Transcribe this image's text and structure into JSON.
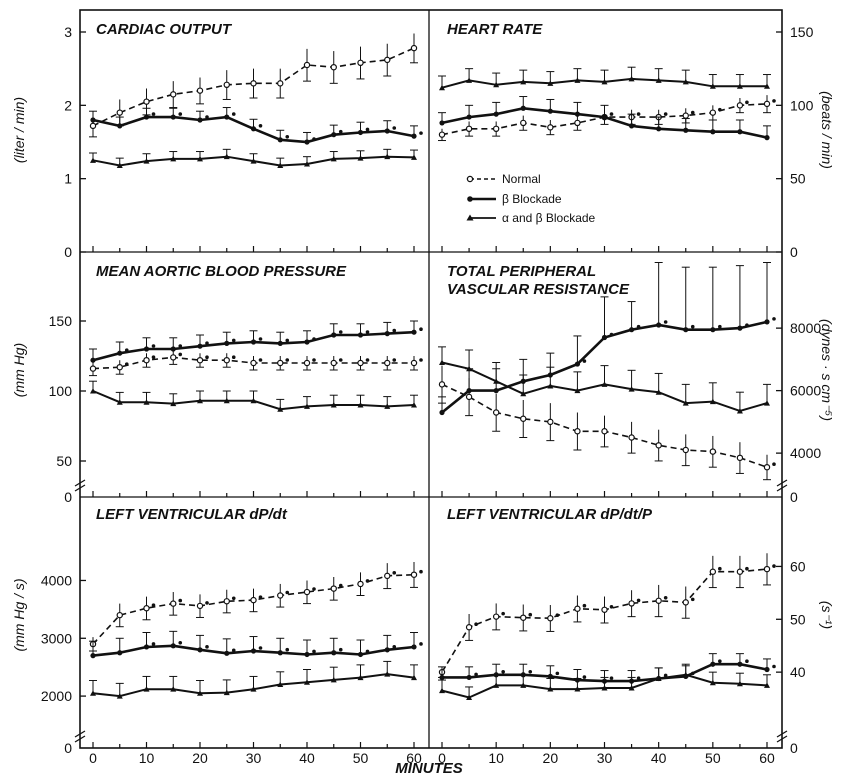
{
  "figure": {
    "xlabel": "MINUTES",
    "x_tick_labels": [
      "0",
      "10",
      "20",
      "30",
      "40",
      "50",
      "60"
    ]
  },
  "legend": {
    "items": [
      {
        "label": "Normal",
        "style": "dashed-open-circle"
      },
      {
        "label": "β Blockade",
        "style": "solid-filled-circle"
      },
      {
        "label": "α and β Blockade",
        "style": "solid-filled-triangle"
      }
    ]
  },
  "colors": {
    "ink": "#111111",
    "background": "#ffffff"
  },
  "chart_data": [
    {
      "type": "line",
      "title": "CARDIAC OUTPUT",
      "ylabel": "(liter / min)",
      "ylim": [
        0,
        3.3
      ],
      "yticks": [
        0,
        1,
        2,
        3
      ],
      "ytick_labels": [
        "0",
        "1",
        "2",
        "3"
      ],
      "x": [
        0,
        5,
        10,
        15,
        20,
        25,
        30,
        35,
        40,
        45,
        50,
        55,
        60
      ],
      "series": [
        {
          "name": "Normal",
          "values": [
            1.72,
            1.9,
            2.05,
            2.15,
            2.2,
            2.28,
            2.3,
            2.3,
            2.55,
            2.52,
            2.58,
            2.62,
            2.78
          ],
          "error": [
            0.15,
            0.18,
            0.18,
            0.18,
            0.18,
            0.2,
            0.2,
            0.2,
            0.22,
            0.22,
            0.22,
            0.22,
            0.2
          ]
        },
        {
          "name": "β Blockade",
          "values": [
            1.8,
            1.72,
            1.84,
            1.84,
            1.8,
            1.84,
            1.68,
            1.53,
            1.5,
            1.6,
            1.63,
            1.65,
            1.58
          ],
          "error": [
            0.12,
            0.12,
            0.12,
            0.12,
            0.12,
            0.13,
            0.13,
            0.13,
            0.13,
            0.13,
            0.14,
            0.14,
            0.14
          ]
        },
        {
          "name": "α and β Blockade",
          "values": [
            1.25,
            1.18,
            1.24,
            1.27,
            1.27,
            1.3,
            1.24,
            1.18,
            1.2,
            1.27,
            1.28,
            1.3,
            1.29
          ],
          "error": [
            0.1,
            0.1,
            0.1,
            0.1,
            0.1,
            0.1,
            0.1,
            0.1,
            0.1,
            0.1,
            0.1,
            0.1,
            0.1
          ]
        }
      ],
      "significance": [
        [
          0,
          0
        ],
        [
          0,
          0
        ],
        [
          0,
          1
        ],
        [
          0,
          1
        ],
        [
          0,
          1
        ],
        [
          0,
          1
        ],
        [
          0,
          1
        ],
        [
          0,
          1
        ],
        [
          0,
          1
        ],
        [
          0,
          1
        ],
        [
          0,
          1
        ],
        [
          0,
          1
        ],
        [
          0,
          1
        ]
      ]
    },
    {
      "type": "line",
      "title": "HEART RATE",
      "ylabel": "(beats / min)",
      "ylim": [
        0,
        165
      ],
      "yticks": [
        0,
        50,
        100,
        150
      ],
      "ytick_labels": [
        "0",
        "50",
        "100",
        "150"
      ],
      "x": [
        0,
        5,
        10,
        15,
        20,
        25,
        30,
        35,
        40,
        45,
        50,
        55,
        60
      ],
      "series": [
        {
          "name": "Normal",
          "values": [
            80,
            84,
            84,
            88,
            85,
            88,
            92,
            92,
            92,
            93,
            95,
            100,
            101
          ],
          "error": [
            4,
            5,
            5,
            5,
            5,
            5,
            5,
            5,
            5,
            5,
            5,
            5,
            6
          ]
        },
        {
          "name": "β Blockade",
          "values": [
            88,
            92,
            94,
            98,
            96,
            94,
            92,
            86,
            84,
            83,
            82,
            82,
            78
          ],
          "error": [
            7,
            8,
            8,
            8,
            8,
            8,
            8,
            8,
            8,
            8,
            8,
            8,
            8
          ]
        },
        {
          "name": "α and β Blockade",
          "values": [
            112,
            117,
            114,
            116,
            115,
            117,
            116,
            118,
            117,
            116,
            113,
            113,
            113
          ],
          "error": [
            8,
            8,
            8,
            8,
            8,
            8,
            8,
            8,
            8,
            8,
            8,
            8,
            8
          ]
        }
      ],
      "significance": [
        [
          0,
          0
        ],
        [
          0,
          0
        ],
        [
          0,
          0
        ],
        [
          0,
          0
        ],
        [
          0,
          0
        ],
        [
          0,
          0
        ],
        [
          1,
          0
        ],
        [
          1,
          0
        ],
        [
          1,
          0
        ],
        [
          1,
          0
        ],
        [
          1,
          0
        ],
        [
          1,
          0
        ],
        [
          1,
          0
        ]
      ]
    },
    {
      "type": "line",
      "title": "MEAN AORTIC BLOOD PRESSURE",
      "ylabel": "(mm Hg)",
      "ylim": [
        40,
        165
      ],
      "yticks": [
        50,
        100,
        150
      ],
      "ytick_labels": [
        "50",
        "100",
        "150"
      ],
      "axis_break": true,
      "x": [
        0,
        5,
        10,
        15,
        20,
        25,
        30,
        35,
        40,
        45,
        50,
        55,
        60
      ],
      "series": [
        {
          "name": "Normal",
          "values": [
            116,
            117,
            122,
            124,
            122,
            122,
            120,
            120,
            120,
            120,
            120,
            120,
            120
          ],
          "error": [
            5,
            5,
            5,
            5,
            5,
            5,
            5,
            5,
            5,
            5,
            5,
            5,
            5
          ]
        },
        {
          "name": "β Blockade",
          "values": [
            122,
            127,
            130,
            130,
            132,
            134,
            135,
            134,
            135,
            140,
            140,
            141,
            142
          ],
          "error": [
            8,
            8,
            8,
            8,
            8,
            8,
            8,
            8,
            8,
            8,
            8,
            8,
            8
          ]
        },
        {
          "name": "α and β Blockade",
          "values": [
            100,
            92,
            92,
            91,
            93,
            93,
            93,
            87,
            89,
            90,
            90,
            89,
            90
          ],
          "error": [
            7,
            7,
            7,
            7,
            7,
            7,
            7,
            7,
            7,
            7,
            7,
            7,
            7
          ]
        }
      ],
      "significance": [
        [
          0,
          0
        ],
        [
          1,
          1
        ],
        [
          1,
          1
        ],
        [
          1,
          1
        ],
        [
          1,
          1
        ],
        [
          1,
          1
        ],
        [
          1,
          1
        ],
        [
          1,
          1
        ],
        [
          1,
          1
        ],
        [
          1,
          1
        ],
        [
          1,
          1
        ],
        [
          1,
          1
        ],
        [
          1,
          1
        ]
      ]
    },
    {
      "type": "line",
      "title": "TOTAL PERIPHERAL",
      "subtitle": "VASCULAR RESISTANCE",
      "ylabel": "(dynes · s cm⁻⁵)",
      "ylim": [
        3300,
        8900
      ],
      "yticks": [
        4000,
        6000,
        8000
      ],
      "ytick_labels": [
        "4000",
        "6000",
        "8000"
      ],
      "axis_break": true,
      "x": [
        0,
        5,
        10,
        15,
        20,
        25,
        30,
        35,
        40,
        45,
        50,
        55,
        60
      ],
      "series": [
        {
          "name": "Normal",
          "values": [
            6200,
            5800,
            5300,
            5100,
            5000,
            4700,
            4700,
            4500,
            4250,
            4100,
            4050,
            3850,
            3550
          ],
          "error": [
            600,
            600,
            600,
            600,
            600,
            600,
            500,
            500,
            500,
            500,
            500,
            500,
            400
          ]
        },
        {
          "name": "β Blockade",
          "values": [
            5300,
            6000,
            6000,
            6300,
            6500,
            6850,
            7700,
            7950,
            8100,
            7950,
            7950,
            8000,
            8200
          ],
          "error": [
            500,
            700,
            700,
            700,
            700,
            900,
            1300,
            900,
            2000,
            2000,
            2000,
            2000,
            1900
          ]
        },
        {
          "name": "α and β Blockade",
          "values": [
            6900,
            6700,
            6300,
            5900,
            6150,
            6000,
            6200,
            6050,
            5950,
            5600,
            5650,
            5350,
            5600
          ],
          "error": [
            500,
            600,
            600,
            600,
            600,
            600,
            600,
            600,
            600,
            600,
            600,
            600,
            600
          ]
        }
      ],
      "significance": [
        [
          0,
          0
        ],
        [
          0,
          0
        ],
        [
          0,
          0
        ],
        [
          0,
          0
        ],
        [
          0,
          0
        ],
        [
          0,
          1
        ],
        [
          0,
          1
        ],
        [
          0,
          1
        ],
        [
          0,
          1
        ],
        [
          0,
          1
        ],
        [
          0,
          1
        ],
        [
          0,
          1
        ],
        [
          1,
          1
        ]
      ]
    },
    {
      "type": "line",
      "title": "LEFT VENTRICULAR dP/dt",
      "ylabel": "(mm Hg / s)",
      "ylim": [
        1500,
        4700
      ],
      "yticks": [
        2000,
        3000,
        4000
      ],
      "ytick_labels": [
        "2000",
        "3000",
        "4000"
      ],
      "axis_break": true,
      "x": [
        0,
        5,
        10,
        15,
        20,
        25,
        30,
        35,
        40,
        45,
        50,
        55,
        60
      ],
      "series": [
        {
          "name": "Normal",
          "values": [
            2900,
            3400,
            3520,
            3600,
            3560,
            3640,
            3660,
            3740,
            3800,
            3860,
            3940,
            4080,
            4100
          ],
          "error": [
            120,
            200,
            200,
            200,
            200,
            200,
            200,
            200,
            200,
            200,
            200,
            220,
            220
          ]
        },
        {
          "name": "β Blockade",
          "values": [
            2700,
            2750,
            2850,
            2870,
            2800,
            2740,
            2780,
            2750,
            2720,
            2750,
            2720,
            2800,
            2850
          ],
          "error": [
            250,
            250,
            250,
            250,
            250,
            250,
            250,
            250,
            250,
            250,
            250,
            250,
            250
          ]
        },
        {
          "name": "α and β Blockade",
          "values": [
            2050,
            2000,
            2120,
            2120,
            2050,
            2060,
            2120,
            2200,
            2240,
            2280,
            2320,
            2380,
            2320
          ],
          "error": [
            220,
            220,
            220,
            220,
            220,
            220,
            220,
            220,
            220,
            220,
            220,
            220,
            220
          ]
        }
      ],
      "significance": [
        [
          0,
          0
        ],
        [
          0,
          0
        ],
        [
          1,
          1
        ],
        [
          1,
          1
        ],
        [
          1,
          1
        ],
        [
          1,
          1
        ],
        [
          1,
          1
        ],
        [
          1,
          1
        ],
        [
          1,
          1
        ],
        [
          1,
          1
        ],
        [
          1,
          1
        ],
        [
          1,
          1
        ],
        [
          1,
          1
        ]
      ]
    },
    {
      "type": "line",
      "title": "LEFT VENTRICULAR dP/dt/P",
      "ylabel": "(s⁻¹)",
      "ylim": [
        30,
        65
      ],
      "yticks": [
        40,
        50,
        60
      ],
      "ytick_labels": [
        "40",
        "50",
        "60"
      ],
      "axis_break": true,
      "x": [
        0,
        5,
        10,
        15,
        20,
        25,
        30,
        35,
        40,
        45,
        50,
        55,
        60
      ],
      "series": [
        {
          "name": "Normal",
          "values": [
            40,
            48.5,
            50.5,
            50.3,
            50.2,
            52,
            51.8,
            53,
            53.5,
            53.2,
            59,
            59,
            59.5
          ],
          "error": [
            1,
            2.5,
            2.5,
            2.5,
            2.5,
            2.5,
            2.5,
            2.5,
            3,
            3,
            3,
            3,
            3
          ]
        },
        {
          "name": "β Blockade",
          "values": [
            39,
            39,
            39.5,
            39.5,
            39.2,
            38.5,
            38.3,
            38.3,
            38.8,
            39.2,
            41.5,
            41.5,
            40.5
          ],
          "error": [
            2,
            2,
            2,
            2,
            2,
            2,
            2,
            2,
            2,
            2,
            2,
            2,
            2
          ]
        },
        {
          "name": "α and β Blockade",
          "values": [
            36.5,
            35.2,
            37.5,
            37.5,
            36.8,
            36.8,
            37,
            37,
            38.8,
            39.5,
            38,
            37.8,
            37.5
          ],
          "error": [
            2,
            2,
            2,
            2,
            2,
            2,
            2,
            2,
            2,
            2,
            2,
            2,
            2
          ]
        }
      ],
      "significance": [
        [
          0,
          0
        ],
        [
          1,
          1
        ],
        [
          1,
          1
        ],
        [
          1,
          1
        ],
        [
          1,
          1
        ],
        [
          1,
          1
        ],
        [
          1,
          1
        ],
        [
          1,
          1
        ],
        [
          1,
          1
        ],
        [
          1,
          1
        ],
        [
          1,
          1
        ],
        [
          1,
          1
        ],
        [
          1,
          1
        ]
      ]
    }
  ]
}
